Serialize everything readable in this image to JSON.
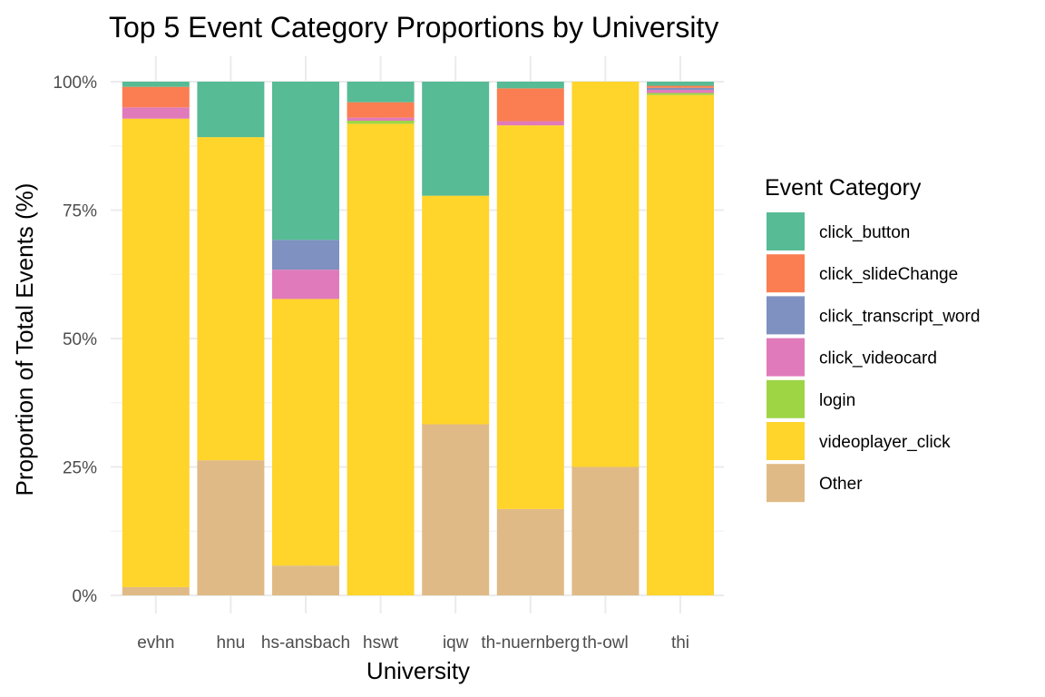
{
  "chart_data": {
    "type": "bar",
    "stacked": true,
    "title": "Top 5 Event Category Proportions by University",
    "xlabel": "University",
    "ylabel": "Proportion of Total Events (%)",
    "ylim": [
      0,
      100
    ],
    "yticks": [
      "0%",
      "25%",
      "50%",
      "75%",
      "100%"
    ],
    "ytick_values": [
      0,
      25,
      50,
      75,
      100
    ],
    "grid": true,
    "legend_title": "Event Category",
    "legend_position": "right",
    "categories": [
      "evhn",
      "hnu",
      "hs-ansbach",
      "hswt",
      "iqw",
      "th-nuernberg",
      "th-owl",
      "thi"
    ],
    "series": [
      {
        "name": "Other",
        "color": "#E0BA86",
        "values": [
          1.6,
          26.3,
          5.8,
          0,
          33.3,
          16.8,
          25.0,
          0
        ]
      },
      {
        "name": "videoplayer_click",
        "color": "#FFD42B",
        "values": [
          91.2,
          62.9,
          51.9,
          91.8,
          44.5,
          74.7,
          75.0,
          97.4
        ]
      },
      {
        "name": "login",
        "color": "#9DD545",
        "values": [
          0,
          0,
          0,
          0.6,
          0,
          0,
          0,
          0.4
        ]
      },
      {
        "name": "click_videocard",
        "color": "#E07ABA",
        "values": [
          2.2,
          0,
          5.7,
          0.6,
          0,
          0.8,
          0,
          0.6
        ]
      },
      {
        "name": "click_transcript_word",
        "color": "#7F91C0",
        "values": [
          0,
          0,
          5.8,
          0,
          0,
          0,
          0,
          0.4
        ]
      },
      {
        "name": "click_slideChange",
        "color": "#FA7E51",
        "values": [
          4.0,
          0,
          0,
          3.0,
          0,
          6.4,
          0,
          0.4
        ]
      },
      {
        "name": "click_button",
        "color": "#57BB95",
        "values": [
          1.0,
          10.8,
          30.8,
          4.0,
          22.2,
          1.3,
          0,
          0.8
        ]
      }
    ],
    "legend_order": [
      "click_button",
      "click_slideChange",
      "click_transcript_word",
      "click_videocard",
      "login",
      "videoplayer_click",
      "Other"
    ]
  }
}
